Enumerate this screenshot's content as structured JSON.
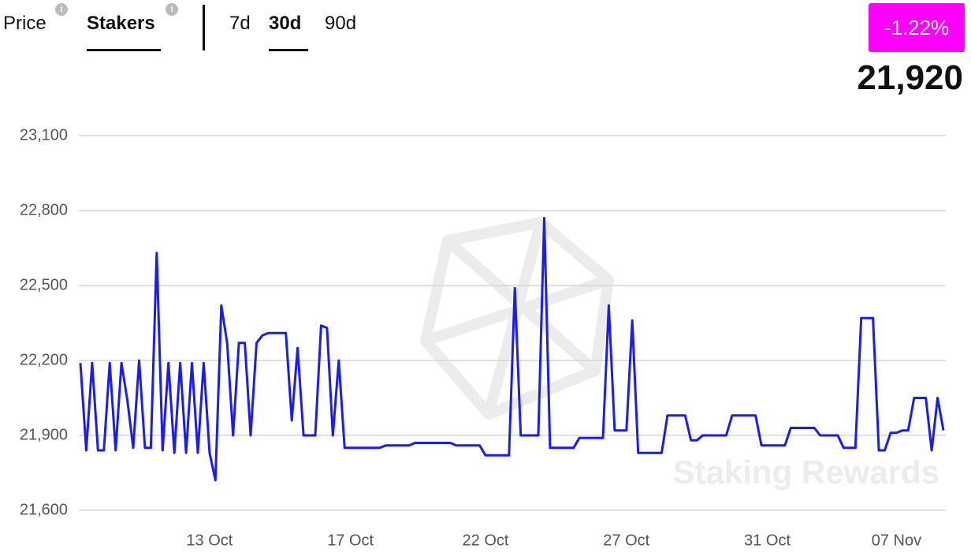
{
  "header": {
    "tabs": [
      "Price",
      "Stakers"
    ],
    "ranges": [
      "7d",
      "30d",
      "90d"
    ],
    "change": "-1.22%",
    "current": "21,920"
  },
  "chart_data": {
    "type": "line",
    "watermark": "Staking Rewards",
    "categories": [
      null,
      null,
      null,
      null,
      null,
      null,
      null,
      null,
      null,
      null,
      null,
      null,
      null,
      null,
      null,
      null,
      null,
      null,
      null,
      null,
      null,
      null,
      "13 Oct",
      null,
      null,
      null,
      null,
      null,
      null,
      null,
      null,
      null,
      null,
      null,
      null,
      null,
      null,
      null,
      null,
      null,
      null,
      null,
      null,
      null,
      null,
      null,
      "17 Oct",
      null,
      null,
      null,
      null,
      null,
      null,
      null,
      null,
      null,
      null,
      null,
      null,
      null,
      null,
      null,
      null,
      null,
      null,
      null,
      null,
      null,
      null,
      "22 Oct",
      null,
      null,
      null,
      null,
      null,
      null,
      null,
      null,
      null,
      null,
      null,
      null,
      null,
      null,
      null,
      null,
      null,
      null,
      null,
      null,
      null,
      null,
      null,
      "27 Oct",
      null,
      null,
      null,
      null,
      null,
      null,
      null,
      null,
      null,
      null,
      null,
      null,
      null,
      null,
      null,
      null,
      null,
      null,
      null,
      null,
      null,
      null,
      null,
      "31 Oct",
      null,
      null,
      null,
      null,
      null,
      null,
      null,
      null,
      null,
      null,
      null,
      null,
      null,
      null,
      null,
      null,
      null,
      null,
      null,
      null,
      null,
      "07 Nov",
      null,
      null,
      null,
      null,
      null,
      null,
      null,
      null
    ],
    "values": [
      22190,
      21840,
      22190,
      21840,
      21840,
      22190,
      21840,
      22190,
      22040,
      21850,
      22200,
      21850,
      21850,
      22630,
      21840,
      22190,
      21830,
      22190,
      21830,
      22190,
      21830,
      22190,
      21830,
      21720,
      22420,
      22270,
      21900,
      22270,
      22270,
      21900,
      22270,
      22300,
      22310,
      22310,
      22310,
      22310,
      21960,
      22250,
      21900,
      21900,
      21900,
      22340,
      22330,
      21900,
      22200,
      21850,
      21850,
      21850,
      21850,
      21850,
      21850,
      21850,
      21860,
      21860,
      21860,
      21860,
      21860,
      21870,
      21870,
      21870,
      21870,
      21870,
      21870,
      21870,
      21860,
      21860,
      21860,
      21860,
      21860,
      21820,
      21820,
      21820,
      21820,
      21820,
      22490,
      21900,
      21900,
      21900,
      21900,
      22770,
      21850,
      21850,
      21850,
      21850,
      21850,
      21890,
      21890,
      21890,
      21890,
      21890,
      22420,
      21920,
      21920,
      21920,
      22360,
      21830,
      21830,
      21830,
      21830,
      21830,
      21980,
      21980,
      21980,
      21980,
      21880,
      21880,
      21900,
      21900,
      21900,
      21900,
      21900,
      21980,
      21980,
      21980,
      21980,
      21980,
      21860,
      21860,
      21860,
      21860,
      21860,
      21930,
      21930,
      21930,
      21930,
      21930,
      21900,
      21900,
      21900,
      21900,
      21850,
      21850,
      21850,
      22370,
      22370,
      22370,
      21840,
      21840,
      21910,
      21910,
      21920,
      21920,
      22050,
      22050,
      22050,
      21840,
      22050,
      21920
    ],
    "color": "#1a1aff",
    "ylim": [
      21600,
      23100
    ],
    "yticks": [
      {
        "value": 21600,
        "label": "21,600"
      },
      {
        "value": 21900,
        "label": "21,900"
      },
      {
        "value": 22200,
        "label": "22,200"
      },
      {
        "value": 22500,
        "label": "22,500"
      },
      {
        "value": 22800,
        "label": "22,800"
      },
      {
        "value": 23100,
        "label": "23,100"
      }
    ],
    "grid": true
  }
}
